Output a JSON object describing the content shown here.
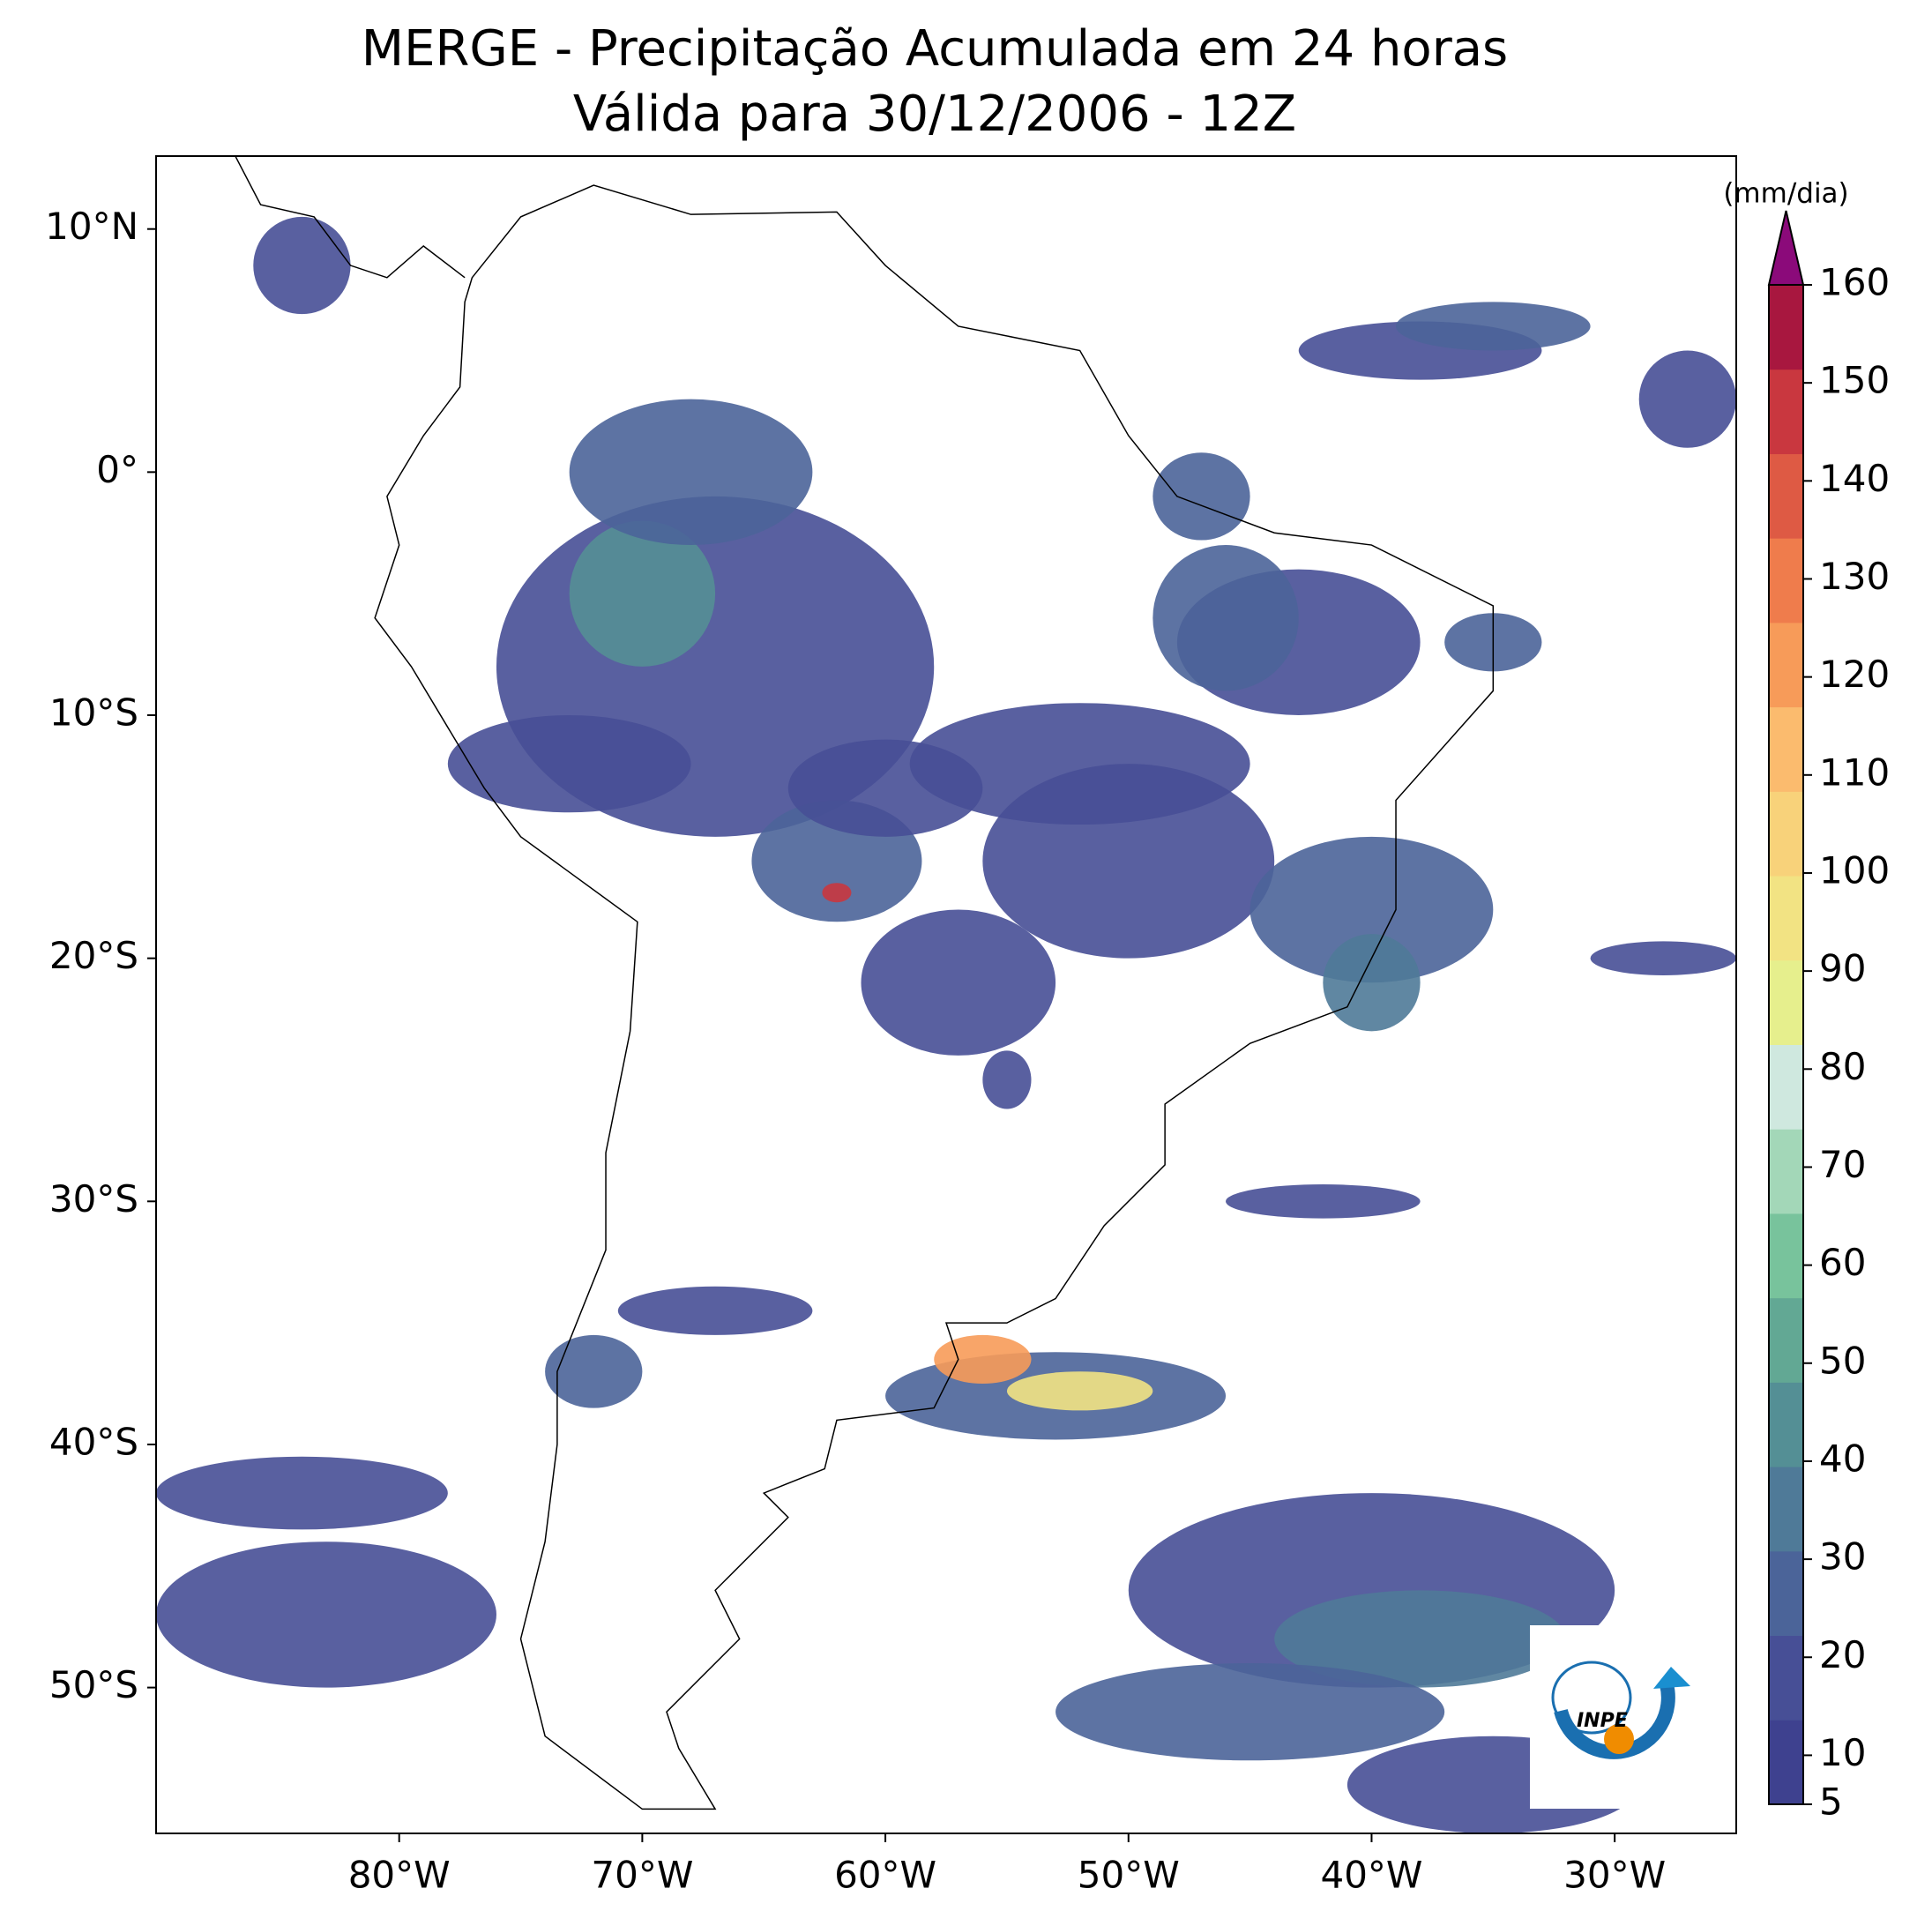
{
  "map": {
    "title": "MERGE - Precipitação Acumulada em 24 horas",
    "subtitle": "Válida para 30/12/2006 - 12Z",
    "xlim": [
      -90,
      -25
    ],
    "ylim": [
      -56,
      13
    ],
    "xticks": [
      {
        "value": -80,
        "label": "80°W"
      },
      {
        "value": -70,
        "label": "70°W"
      },
      {
        "value": -60,
        "label": "60°W"
      },
      {
        "value": -50,
        "label": "50°W"
      },
      {
        "value": -40,
        "label": "40°W"
      },
      {
        "value": -30,
        "label": "30°W"
      }
    ],
    "yticks": [
      {
        "value": 10,
        "label": "10°N"
      },
      {
        "value": 0,
        "label": "0°"
      },
      {
        "value": -10,
        "label": "10°S"
      },
      {
        "value": -20,
        "label": "20°S"
      },
      {
        "value": -30,
        "label": "30°S"
      },
      {
        "value": -40,
        "label": "40°S"
      },
      {
        "value": -50,
        "label": "50°S"
      }
    ],
    "colorbar": {
      "label": "(mm/dia)",
      "lim": [
        5,
        160
      ],
      "ticks": [
        5,
        10,
        20,
        30,
        40,
        50,
        60,
        70,
        80,
        90,
        100,
        110,
        120,
        130,
        140,
        150,
        160
      ],
      "colors": [
        "#3e418f",
        "#474f96",
        "#4b6499",
        "#4f7a98",
        "#548f95",
        "#62a894",
        "#78c39c",
        "#a3d7b8",
        "#cfe8df",
        "#e6ef8d",
        "#f2e383",
        "#f8d27a",
        "#fbbb6e",
        "#f79b59",
        "#ef7c4c",
        "#de5a44",
        "#c9373f",
        "#a8173f"
      ],
      "extend_color": "#8b0a7a"
    },
    "logo": "INPE"
  }
}
